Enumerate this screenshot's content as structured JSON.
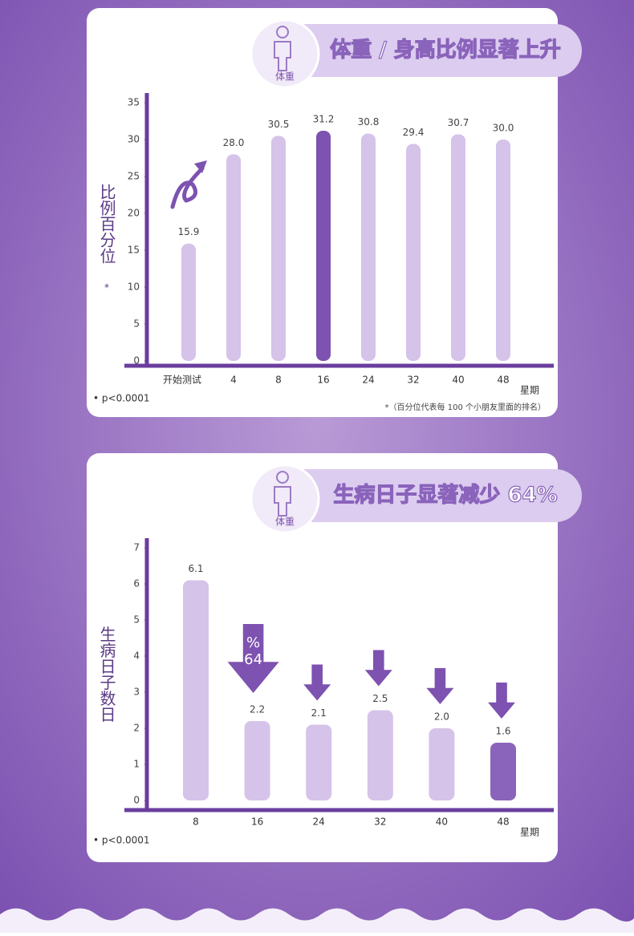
{
  "chart_data": [
    {
      "type": "bar",
      "title": "体重 / 身高比例显著上升",
      "icon_label": "体重",
      "ylabel": "比例百分位",
      "ylabel_mark": "*",
      "categories": [
        "开始测试",
        "4",
        "8",
        "16",
        "24",
        "32",
        "40",
        "48"
      ],
      "values": [
        15.9,
        28.0,
        30.5,
        31.2,
        30.8,
        29.4,
        30.7,
        30.0
      ],
      "value_labels": [
        "15.9",
        "28.0",
        "30.5",
        "31.2",
        "30.8",
        "29.4",
        "30.7",
        "30.0"
      ],
      "colors": [
        "#d5c3e9",
        "#d5c3e9",
        "#d5c3e9",
        "#7d52b0",
        "#d5c3e9",
        "#d5c3e9",
        "#d5c3e9",
        "#d5c3e9"
      ],
      "ylim": [
        0,
        35
      ],
      "yticks": [
        0,
        5,
        10,
        15,
        20,
        25,
        30,
        35
      ],
      "xlabel": "星期",
      "note": "• p<0.0001",
      "footnote": "*（百分位代表每 100 个小朋友里面的排名）"
    },
    {
      "type": "bar",
      "title": "生病日子显著减少 64%",
      "icon_label": "体重",
      "ylabel": "生病日子数日",
      "categories": [
        "8",
        "16",
        "24",
        "32",
        "40",
        "48"
      ],
      "values": [
        6.1,
        2.2,
        2.1,
        2.5,
        2.0,
        1.6
      ],
      "value_labels": [
        "6.1",
        "2.2",
        "2.1",
        "2.5",
        "2.0",
        "1.6"
      ],
      "colors": [
        "#d5c3e9",
        "#d5c3e9",
        "#d5c3e9",
        "#d5c3e9",
        "#d5c3e9",
        "#8a63bb"
      ],
      "ylim": [
        0,
        7
      ],
      "yticks": [
        0,
        1,
        2,
        3,
        4,
        5,
        6,
        7
      ],
      "annotation": {
        "symbol": "%",
        "number": "64"
      },
      "xlabel": "星期",
      "note": "• p<0.0001"
    }
  ]
}
